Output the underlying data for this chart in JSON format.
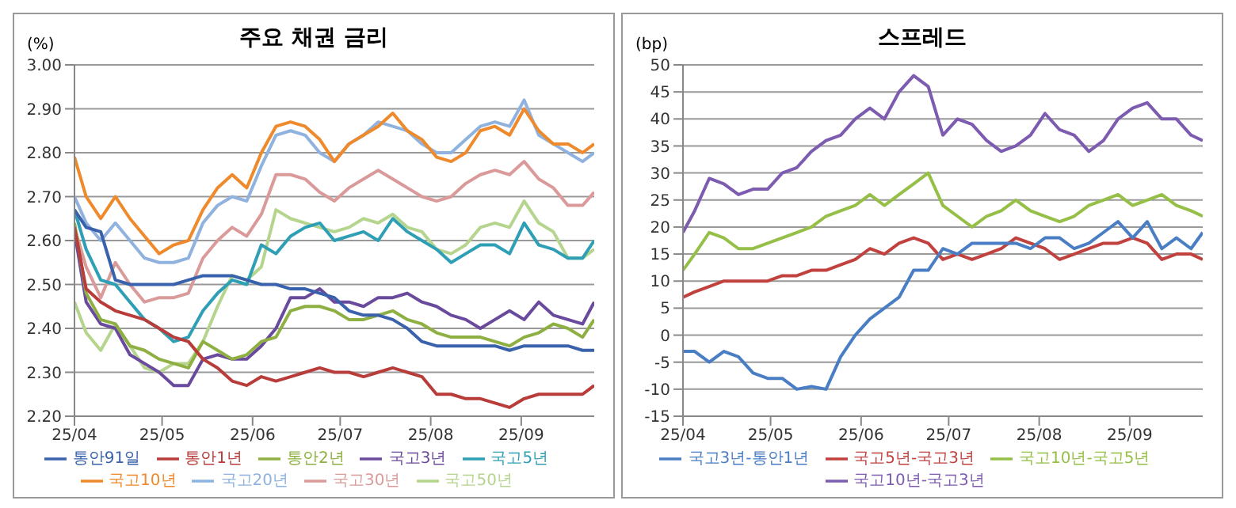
{
  "chart_data": [
    {
      "type": "line",
      "title": "주요 채권 금리",
      "ylabel": "(%)",
      "x": [
        "--04-01",
        "--04-05",
        "--04-10",
        "--04-15",
        "--04-20",
        "--04-25",
        "--04-30",
        "--05-05",
        "--05-10",
        "--05-15",
        "--05-20",
        "--05-25",
        "--05-30",
        "--06-04",
        "--06-09",
        "--06-14",
        "--06-19",
        "--06-24",
        "--06-29",
        "--07-04",
        "--07-09",
        "--07-14",
        "--07-19",
        "--07-24",
        "--07-29",
        "--08-03",
        "--08-08",
        "--08-13",
        "--08-18",
        "--08-23",
        "--08-28",
        "--09-02",
        "--09-07",
        "--09-12",
        "--09-17",
        "--09-22",
        "--09-26"
      ],
      "series": [
        {
          "name": "통안91일",
          "color": "#3a62ac",
          "values": [
            2.67,
            2.63,
            2.62,
            2.51,
            2.5,
            2.5,
            2.5,
            2.5,
            2.51,
            2.52,
            2.52,
            2.52,
            2.51,
            2.5,
            2.5,
            2.49,
            2.49,
            2.48,
            2.47,
            2.44,
            2.43,
            2.43,
            2.42,
            2.4,
            2.37,
            2.36,
            2.36,
            2.36,
            2.36,
            2.36,
            2.35,
            2.36,
            2.36,
            2.36,
            2.36,
            2.35,
            2.35
          ]
        },
        {
          "name": "통안1년",
          "color": "#b83c3a",
          "values": [
            2.63,
            2.49,
            2.46,
            2.44,
            2.43,
            2.42,
            2.4,
            2.38,
            2.37,
            2.33,
            2.31,
            2.28,
            2.27,
            2.29,
            2.28,
            2.29,
            2.3,
            2.31,
            2.3,
            2.3,
            2.29,
            2.3,
            2.31,
            2.3,
            2.29,
            2.25,
            2.25,
            2.24,
            2.24,
            2.23,
            2.22,
            2.24,
            2.25,
            2.25,
            2.25,
            2.25,
            2.27
          ]
        },
        {
          "name": "통안2년",
          "color": "#8eb042",
          "values": [
            2.64,
            2.48,
            2.42,
            2.41,
            2.36,
            2.35,
            2.33,
            2.32,
            2.31,
            2.37,
            2.35,
            2.33,
            2.34,
            2.37,
            2.38,
            2.44,
            2.45,
            2.45,
            2.44,
            2.42,
            2.42,
            2.43,
            2.44,
            2.42,
            2.41,
            2.39,
            2.38,
            2.38,
            2.38,
            2.37,
            2.36,
            2.38,
            2.39,
            2.41,
            2.4,
            2.38,
            2.42
          ]
        },
        {
          "name": "국고3년",
          "color": "#6a4a9c",
          "values": [
            2.62,
            2.46,
            2.41,
            2.4,
            2.34,
            2.32,
            2.3,
            2.27,
            2.27,
            2.33,
            2.34,
            2.33,
            2.33,
            2.36,
            2.4,
            2.47,
            2.47,
            2.49,
            2.46,
            2.46,
            2.45,
            2.47,
            2.47,
            2.48,
            2.46,
            2.45,
            2.43,
            2.42,
            2.4,
            2.42,
            2.44,
            2.42,
            2.46,
            2.43,
            2.42,
            2.41,
            2.46
          ]
        },
        {
          "name": "국고5년",
          "color": "#2e9fb5",
          "values": [
            2.67,
            2.58,
            2.51,
            2.5,
            2.46,
            2.42,
            2.4,
            2.37,
            2.38,
            2.44,
            2.48,
            2.51,
            2.5,
            2.59,
            2.57,
            2.61,
            2.63,
            2.64,
            2.6,
            2.61,
            2.62,
            2.6,
            2.65,
            2.62,
            2.6,
            2.58,
            2.55,
            2.57,
            2.59,
            2.59,
            2.57,
            2.64,
            2.59,
            2.58,
            2.56,
            2.56,
            2.6
          ]
        },
        {
          "name": "국고10년",
          "color": "#ef8a2c",
          "values": [
            2.79,
            2.7,
            2.65,
            2.7,
            2.65,
            2.61,
            2.57,
            2.59,
            2.6,
            2.67,
            2.72,
            2.75,
            2.72,
            2.8,
            2.86,
            2.87,
            2.86,
            2.83,
            2.78,
            2.82,
            2.84,
            2.86,
            2.89,
            2.85,
            2.83,
            2.79,
            2.78,
            2.8,
            2.85,
            2.86,
            2.84,
            2.9,
            2.85,
            2.82,
            2.82,
            2.8,
            2.82
          ]
        },
        {
          "name": "국고20년",
          "color": "#8fb2de",
          "values": [
            2.7,
            2.64,
            2.6,
            2.64,
            2.6,
            2.56,
            2.55,
            2.55,
            2.56,
            2.64,
            2.68,
            2.7,
            2.69,
            2.77,
            2.84,
            2.85,
            2.84,
            2.8,
            2.78,
            2.82,
            2.84,
            2.87,
            2.86,
            2.85,
            2.82,
            2.8,
            2.8,
            2.83,
            2.86,
            2.87,
            2.86,
            2.92,
            2.84,
            2.82,
            2.8,
            2.78,
            2.8
          ]
        },
        {
          "name": "국고30년",
          "color": "#db9a9a",
          "values": [
            2.63,
            2.54,
            2.47,
            2.55,
            2.5,
            2.46,
            2.47,
            2.47,
            2.48,
            2.56,
            2.6,
            2.63,
            2.61,
            2.66,
            2.75,
            2.75,
            2.74,
            2.71,
            2.69,
            2.72,
            2.74,
            2.76,
            2.74,
            2.72,
            2.7,
            2.69,
            2.7,
            2.73,
            2.75,
            2.76,
            2.75,
            2.78,
            2.74,
            2.72,
            2.68,
            2.68,
            2.71
          ]
        },
        {
          "name": "국고50년",
          "color": "#b5d58e",
          "values": [
            2.46,
            2.39,
            2.35,
            2.41,
            2.36,
            2.31,
            2.3,
            2.32,
            2.32,
            2.37,
            2.45,
            2.52,
            2.51,
            2.54,
            2.67,
            2.65,
            2.64,
            2.63,
            2.62,
            2.63,
            2.65,
            2.64,
            2.66,
            2.63,
            2.62,
            2.58,
            2.57,
            2.59,
            2.63,
            2.64,
            2.63,
            2.69,
            2.64,
            2.62,
            2.56,
            2.56,
            2.58
          ]
        }
      ],
      "xlim": [
        "--04-01",
        "--09-26"
      ],
      "xticks": [
        {
          "value": "--04-01",
          "label": "25/04"
        },
        {
          "value": "--05-01",
          "label": "25/05"
        },
        {
          "value": "--06-01",
          "label": "25/06"
        },
        {
          "value": "--07-01",
          "label": "25/07"
        },
        {
          "value": "--08-01",
          "label": "25/08"
        },
        {
          "value": "--09-01",
          "label": "25/09"
        }
      ],
      "ylim": [
        2.2,
        3.0
      ],
      "yticks": [
        {
          "value": 2.2,
          "label": "2.20"
        },
        {
          "value": 2.3,
          "label": "2.30"
        },
        {
          "value": 2.4,
          "label": "2.40"
        },
        {
          "value": 2.5,
          "label": "2.50"
        },
        {
          "value": 2.6,
          "label": "2.60"
        },
        {
          "value": 2.7,
          "label": "2.70"
        },
        {
          "value": 2.8,
          "label": "2.80"
        },
        {
          "value": 2.9,
          "label": "2.90"
        },
        {
          "value": 3.0,
          "label": "3.00"
        }
      ],
      "grid": "y",
      "legend": "bottom"
    },
    {
      "type": "line",
      "title": "스프레드",
      "ylabel": "(bp)",
      "x": [
        "--04-01",
        "--04-05",
        "--04-10",
        "--04-15",
        "--04-20",
        "--04-25",
        "--04-30",
        "--05-05",
        "--05-10",
        "--05-15",
        "--05-20",
        "--05-25",
        "--05-30",
        "--06-04",
        "--06-09",
        "--06-14",
        "--06-19",
        "--06-24",
        "--06-29",
        "--07-04",
        "--07-09",
        "--07-14",
        "--07-19",
        "--07-24",
        "--07-29",
        "--08-03",
        "--08-08",
        "--08-13",
        "--08-18",
        "--08-23",
        "--08-28",
        "--09-02",
        "--09-07",
        "--09-12",
        "--09-17",
        "--09-22",
        "--09-26"
      ],
      "series": [
        {
          "name": "국고3년-통안1년",
          "color": "#4a7ec4",
          "values": [
            -3,
            -3,
            -5,
            -3,
            -4,
            -7,
            -8,
            -8,
            -10,
            -9.5,
            -10,
            -4,
            0,
            3,
            5,
            7,
            12,
            12,
            16,
            15,
            17,
            17,
            17,
            17,
            16,
            18,
            18,
            16,
            17,
            19,
            21,
            18,
            21,
            16,
            18,
            16,
            19
          ]
        },
        {
          "name": "국고5년-국고3년",
          "color": "#c0413e",
          "values": [
            7,
            8,
            9,
            10,
            10,
            10,
            10,
            11,
            11,
            12,
            12,
            13,
            14,
            16,
            15,
            17,
            18,
            17,
            14,
            15,
            14,
            15,
            16,
            18,
            17,
            16,
            14,
            15,
            16,
            17,
            17,
            18,
            17,
            14,
            15,
            15,
            14
          ]
        },
        {
          "name": "국고10년-국고5년",
          "color": "#95bf47",
          "values": [
            12,
            15,
            19,
            18,
            16,
            16,
            17,
            18,
            19,
            20,
            22,
            23,
            24,
            26,
            24,
            26,
            28,
            30,
            24,
            22,
            20,
            22,
            23,
            25,
            23,
            22,
            21,
            22,
            24,
            25,
            26,
            24,
            25,
            26,
            24,
            23,
            22
          ]
        },
        {
          "name": "국고10년-국고3년",
          "color": "#7c5bb0",
          "values": [
            19,
            23,
            29,
            28,
            26,
            27,
            27,
            30,
            31,
            34,
            36,
            37,
            40,
            42,
            40,
            45,
            48,
            46,
            37,
            40,
            39,
            36,
            34,
            35,
            37,
            41,
            38,
            37,
            34,
            36,
            40,
            42,
            43,
            40,
            40,
            37,
            36
          ]
        }
      ],
      "xlim": [
        "--04-01",
        "--09-26"
      ],
      "xticks": [
        {
          "value": "--04-01",
          "label": "25/04"
        },
        {
          "value": "--05-01",
          "label": "25/05"
        },
        {
          "value": "--06-01",
          "label": "25/06"
        },
        {
          "value": "--07-01",
          "label": "25/07"
        },
        {
          "value": "--08-01",
          "label": "25/08"
        },
        {
          "value": "--09-01",
          "label": "25/09"
        }
      ],
      "ylim": [
        -15,
        50
      ],
      "yticks": [
        -15,
        -10,
        -5,
        0,
        5,
        10,
        15,
        20,
        25,
        30,
        35,
        40,
        45,
        50
      ],
      "grid": "y",
      "legend": "bottom"
    }
  ]
}
